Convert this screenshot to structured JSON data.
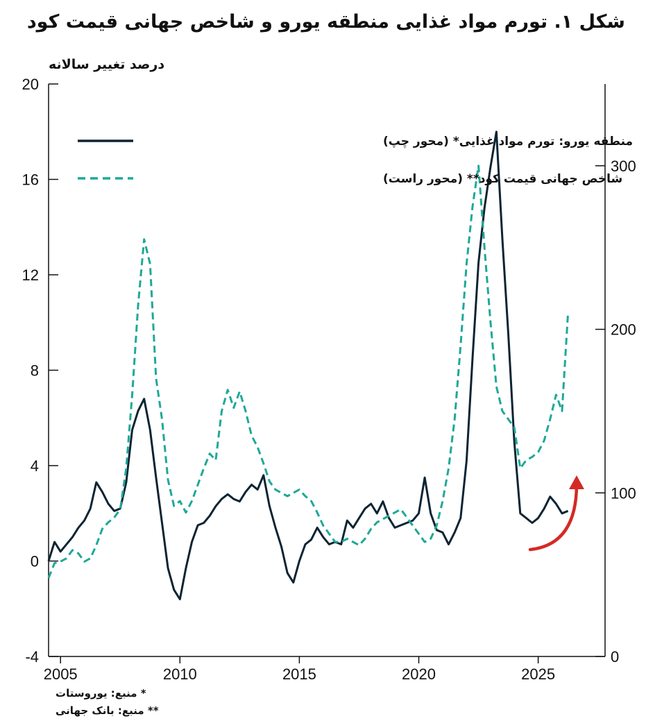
{
  "title": "شکل ۱. تورم مواد غذایی منطقه یورو و شاخص جهانی قیمت کود",
  "unit_label": "درصد تغییر سالانه",
  "sources": [
    "* منبع: یوروستات",
    "** منبع: بانک جهانی"
  ],
  "chart_data": {
    "type": "line",
    "title": "شکل ۱. تورم مواد غذایی منطقه یورو و شاخص جهانی قیمت کود",
    "ylabel_left": "درصد تغییر سالانه",
    "x_ticks": [
      2005,
      2010,
      2015,
      2020,
      2025
    ],
    "xlim": [
      2004.5,
      2027.8
    ],
    "left_axis": {
      "ylim": [
        -4,
        20
      ],
      "ticks": [
        -4,
        0,
        4,
        8,
        12,
        16,
        20
      ]
    },
    "right_axis": {
      "ylim": [
        0,
        350
      ],
      "ticks": [
        0,
        100,
        200,
        300
      ]
    },
    "grid": false,
    "legend_position": "top-left",
    "series": [
      {
        "name": "منطقه یورو: تورم مواد غذایی* (محور چپ)",
        "axis": "left",
        "style": "solid",
        "color": "#0d2433",
        "points": [
          [
            2004.5,
            0.0
          ],
          [
            2004.75,
            0.8
          ],
          [
            2005.0,
            0.4
          ],
          [
            2005.25,
            0.7
          ],
          [
            2005.5,
            1.0
          ],
          [
            2005.75,
            1.4
          ],
          [
            2006.0,
            1.7
          ],
          [
            2006.25,
            2.2
          ],
          [
            2006.5,
            3.3
          ],
          [
            2006.75,
            2.9
          ],
          [
            2007.0,
            2.4
          ],
          [
            2007.25,
            2.1
          ],
          [
            2007.5,
            2.2
          ],
          [
            2007.75,
            3.3
          ],
          [
            2008.0,
            5.5
          ],
          [
            2008.25,
            6.3
          ],
          [
            2008.5,
            6.8
          ],
          [
            2008.75,
            5.5
          ],
          [
            2009.0,
            3.5
          ],
          [
            2009.25,
            1.6
          ],
          [
            2009.5,
            -0.3
          ],
          [
            2009.75,
            -1.2
          ],
          [
            2010.0,
            -1.6
          ],
          [
            2010.25,
            -0.3
          ],
          [
            2010.5,
            0.8
          ],
          [
            2010.75,
            1.5
          ],
          [
            2011.0,
            1.6
          ],
          [
            2011.25,
            1.9
          ],
          [
            2011.5,
            2.3
          ],
          [
            2011.75,
            2.6
          ],
          [
            2012.0,
            2.8
          ],
          [
            2012.25,
            2.6
          ],
          [
            2012.5,
            2.5
          ],
          [
            2012.75,
            2.9
          ],
          [
            2013.0,
            3.2
          ],
          [
            2013.25,
            3.0
          ],
          [
            2013.5,
            3.6
          ],
          [
            2013.75,
            2.3
          ],
          [
            2014.0,
            1.4
          ],
          [
            2014.25,
            0.6
          ],
          [
            2014.5,
            -0.5
          ],
          [
            2014.75,
            -0.9
          ],
          [
            2015.0,
            0.0
          ],
          [
            2015.25,
            0.7
          ],
          [
            2015.5,
            0.9
          ],
          [
            2015.75,
            1.4
          ],
          [
            2016.0,
            1.0
          ],
          [
            2016.25,
            0.7
          ],
          [
            2016.5,
            0.8
          ],
          [
            2016.75,
            0.7
          ],
          [
            2017.0,
            1.7
          ],
          [
            2017.25,
            1.4
          ],
          [
            2017.5,
            1.8
          ],
          [
            2017.75,
            2.2
          ],
          [
            2018.0,
            2.4
          ],
          [
            2018.25,
            2.0
          ],
          [
            2018.5,
            2.5
          ],
          [
            2018.75,
            1.8
          ],
          [
            2019.0,
            1.4
          ],
          [
            2019.25,
            1.5
          ],
          [
            2019.5,
            1.6
          ],
          [
            2019.75,
            1.7
          ],
          [
            2020.0,
            2.0
          ],
          [
            2020.25,
            3.5
          ],
          [
            2020.5,
            2.0
          ],
          [
            2020.75,
            1.3
          ],
          [
            2021.0,
            1.2
          ],
          [
            2021.25,
            0.7
          ],
          [
            2021.5,
            1.2
          ],
          [
            2021.75,
            1.8
          ],
          [
            2022.0,
            4.2
          ],
          [
            2022.25,
            8.5
          ],
          [
            2022.5,
            12.5
          ],
          [
            2022.75,
            14.8
          ],
          [
            2023.0,
            16.5
          ],
          [
            2023.25,
            18.0
          ],
          [
            2023.5,
            13.5
          ],
          [
            2023.75,
            9.5
          ],
          [
            2024.0,
            5.0
          ],
          [
            2024.25,
            2.0
          ],
          [
            2024.5,
            1.8
          ],
          [
            2024.75,
            1.6
          ],
          [
            2025.0,
            1.8
          ],
          [
            2025.25,
            2.2
          ],
          [
            2025.5,
            2.7
          ],
          [
            2025.75,
            2.4
          ],
          [
            2026.0,
            2.0
          ],
          [
            2026.25,
            2.1
          ]
        ]
      },
      {
        "name": "شاخص جهانی قیمت کود** (محور راست)",
        "axis": "right",
        "style": "dashed",
        "color": "#1ea898",
        "points": [
          [
            2004.5,
            48
          ],
          [
            2004.75,
            57
          ],
          [
            2005.0,
            58
          ],
          [
            2005.25,
            60
          ],
          [
            2005.5,
            65
          ],
          [
            2005.75,
            63
          ],
          [
            2006.0,
            58
          ],
          [
            2006.25,
            60
          ],
          [
            2006.5,
            68
          ],
          [
            2006.75,
            78
          ],
          [
            2007.0,
            82
          ],
          [
            2007.25,
            85
          ],
          [
            2007.5,
            90
          ],
          [
            2007.75,
            115
          ],
          [
            2008.0,
            160
          ],
          [
            2008.25,
            215
          ],
          [
            2008.5,
            255
          ],
          [
            2008.75,
            240
          ],
          [
            2009.0,
            170
          ],
          [
            2009.25,
            145
          ],
          [
            2009.5,
            108
          ],
          [
            2009.75,
            92
          ],
          [
            2010.0,
            95
          ],
          [
            2010.25,
            88
          ],
          [
            2010.5,
            95
          ],
          [
            2010.75,
            105
          ],
          [
            2011.0,
            115
          ],
          [
            2011.25,
            124
          ],
          [
            2011.5,
            120
          ],
          [
            2011.75,
            150
          ],
          [
            2012.0,
            163
          ],
          [
            2012.25,
            152
          ],
          [
            2012.5,
            162
          ],
          [
            2012.75,
            150
          ],
          [
            2013.0,
            135
          ],
          [
            2013.25,
            128
          ],
          [
            2013.5,
            118
          ],
          [
            2013.75,
            107
          ],
          [
            2014.0,
            102
          ],
          [
            2014.25,
            100
          ],
          [
            2014.5,
            98
          ],
          [
            2014.75,
            100
          ],
          [
            2015.0,
            102
          ],
          [
            2015.25,
            98
          ],
          [
            2015.5,
            95
          ],
          [
            2015.75,
            88
          ],
          [
            2016.0,
            80
          ],
          [
            2016.25,
            75
          ],
          [
            2016.5,
            70
          ],
          [
            2016.75,
            70
          ],
          [
            2017.0,
            72
          ],
          [
            2017.25,
            70
          ],
          [
            2017.5,
            68
          ],
          [
            2017.75,
            72
          ],
          [
            2018.0,
            78
          ],
          [
            2018.25,
            82
          ],
          [
            2018.5,
            84
          ],
          [
            2018.75,
            86
          ],
          [
            2019.0,
            88
          ],
          [
            2019.25,
            90
          ],
          [
            2019.5,
            85
          ],
          [
            2019.75,
            80
          ],
          [
            2020.0,
            75
          ],
          [
            2020.25,
            70
          ],
          [
            2020.5,
            72
          ],
          [
            2020.75,
            80
          ],
          [
            2021.0,
            95
          ],
          [
            2021.25,
            115
          ],
          [
            2021.5,
            145
          ],
          [
            2021.75,
            190
          ],
          [
            2022.0,
            240
          ],
          [
            2022.25,
            275
          ],
          [
            2022.5,
            300
          ],
          [
            2022.75,
            250
          ],
          [
            2023.0,
            205
          ],
          [
            2023.25,
            165
          ],
          [
            2023.5,
            150
          ],
          [
            2023.75,
            145
          ],
          [
            2024.0,
            140
          ],
          [
            2024.25,
            115
          ],
          [
            2024.5,
            120
          ],
          [
            2024.75,
            122
          ],
          [
            2025.0,
            125
          ],
          [
            2025.25,
            132
          ],
          [
            2025.5,
            145
          ],
          [
            2025.75,
            160
          ],
          [
            2026.0,
            150
          ],
          [
            2026.25,
            210
          ]
        ]
      }
    ]
  }
}
